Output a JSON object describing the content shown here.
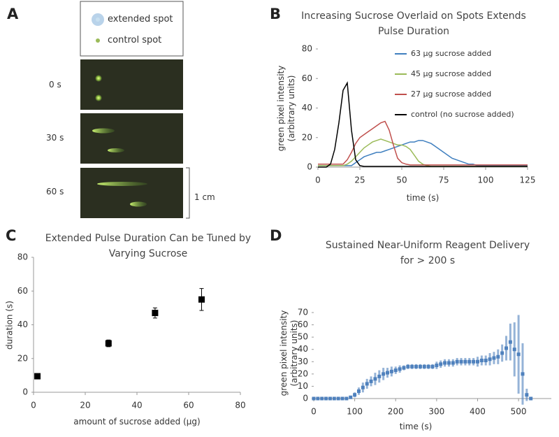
{
  "panel_a": {
    "panel": "A",
    "legend": [
      "extended spot",
      "control spot"
    ],
    "frames": [
      "0 s",
      "30 s",
      "60 s"
    ],
    "scale_bar": "1 cm"
  },
  "chart_data": [
    {
      "type": "line",
      "panel": "B",
      "title": "Increasing Sucrose Overlaid on Spots Extends Pulse Duration",
      "x_label": "time (s)",
      "y_label": "green pixel intensity (arbitrary units)",
      "x": [
        0,
        2.5,
        5,
        7.5,
        10,
        12.5,
        15,
        17.5,
        20,
        22.5,
        25,
        27.5,
        30,
        32.5,
        35,
        37.5,
        40,
        42.5,
        45,
        47.5,
        50,
        52.5,
        55,
        57.5,
        60,
        62.5,
        65,
        67.5,
        70,
        72.5,
        75,
        77.5,
        80,
        82.5,
        85,
        87.5,
        90,
        92.5,
        95,
        97.5,
        100,
        102.5,
        105,
        107.5,
        110,
        112.5,
        115,
        117.5,
        120,
        122.5,
        125
      ],
      "series": [
        {
          "name": "63 µg sucrose added",
          "color": "#3f7fbf",
          "values": [
            1,
            1,
            1,
            1,
            1,
            1,
            1,
            1,
            1,
            3,
            5,
            7,
            8,
            9,
            10,
            10,
            11,
            12,
            13,
            14,
            15,
            16,
            17,
            17,
            18,
            18,
            17,
            16,
            14,
            12,
            10,
            8,
            6,
            5,
            4,
            3,
            2,
            2,
            1,
            1,
            1,
            1,
            1,
            1,
            1,
            1,
            1,
            1,
            1,
            1,
            1
          ]
        },
        {
          "name": "45 µg sucrose added",
          "color": "#9bbb59",
          "values": [
            1,
            1,
            1,
            1,
            1,
            1,
            1,
            2,
            4,
            7,
            10,
            13,
            15,
            17,
            18,
            19,
            18,
            17,
            16,
            15,
            15,
            14,
            12,
            8,
            4,
            2,
            1,
            0.5,
            0.5,
            0.5,
            0.5,
            0.5,
            0.5,
            0.5,
            0.5,
            0.5,
            0.5,
            0.5,
            0.5,
            0.5,
            0.5,
            0.5,
            0.5,
            0.5,
            0.5,
            0.5,
            0.5,
            0.5,
            0.5,
            0.5,
            0.5
          ]
        },
        {
          "name": "27 µg sucrose added",
          "color": "#c0504d",
          "values": [
            2,
            2,
            2,
            2,
            2,
            2,
            2,
            5,
            10,
            16,
            20,
            22,
            24,
            26,
            28,
            30,
            31,
            25,
            15,
            6,
            3,
            2,
            1.5,
            1.5,
            1.5,
            1.5,
            1.5,
            1.5,
            1.5,
            1.5,
            1.5,
            1.5,
            1.5,
            1.5,
            1.5,
            1.5,
            1.5,
            1.5,
            1.5,
            1.5,
            1.5,
            1.5,
            1.5,
            1.5,
            1.5,
            1.5,
            1.5,
            1.5,
            1.5,
            1.5,
            1.5
          ]
        },
        {
          "name": "control (no sucrose added)",
          "color": "#000000",
          "values": [
            0,
            0,
            0,
            2,
            12,
            30,
            52,
            57,
            25,
            5,
            1,
            0.5,
            0.5,
            0.5,
            0.5,
            0.5,
            0.5,
            0.5,
            0.5,
            0.5,
            0.5,
            0.5,
            0.5,
            0.5,
            0.5,
            0.5,
            0.5,
            0.5,
            0.5,
            0.5,
            0.5,
            0.5,
            0.5,
            0.5,
            0.5,
            0.5,
            0.5,
            0.5,
            0.5,
            0.5,
            0.5,
            0.5,
            0.5,
            0.5,
            0.5,
            0.5,
            0.5,
            0.5,
            0.5,
            0.5,
            0.5
          ]
        }
      ],
      "xlim": [
        0,
        125
      ],
      "ylim": [
        0,
        80
      ],
      "xticks": [
        0,
        25,
        50,
        75,
        100,
        125
      ],
      "yticks": [
        0,
        20,
        40,
        60,
        80
      ]
    },
    {
      "type": "scatter",
      "panel": "C",
      "title": "Extended Pulse Duration Can be Tuned by Varying Sucrose",
      "x_label": "amount of sucrose added (µg)",
      "y_label": "duration (s)",
      "x": [
        1.5,
        29,
        47,
        65
      ],
      "values": [
        9.5,
        29,
        47,
        55
      ],
      "errors": [
        1,
        2,
        3,
        6.5
      ],
      "color": "#000000",
      "xlim": [
        0,
        80
      ],
      "ylim": [
        0,
        80
      ],
      "xticks": [
        0,
        20,
        40,
        60,
        80
      ],
      "yticks": [
        0,
        20,
        40,
        60,
        80
      ]
    },
    {
      "type": "line",
      "panel": "D",
      "title": "Sustained Near-Uniform Reagent Delivery for > 200 s",
      "x_label": "time (s)",
      "y_label": "green pixel intensity (arbitrary units)",
      "color": "#4f81bd",
      "x": [
        0,
        10,
        20,
        30,
        40,
        50,
        60,
        70,
        80,
        90,
        100,
        110,
        120,
        130,
        140,
        150,
        160,
        170,
        180,
        190,
        200,
        210,
        220,
        230,
        240,
        250,
        260,
        270,
        280,
        290,
        300,
        310,
        320,
        330,
        340,
        350,
        360,
        370,
        380,
        390,
        400,
        410,
        420,
        430,
        440,
        450,
        460,
        470,
        480,
        490,
        500,
        510,
        520,
        530
      ],
      "values": [
        0,
        0,
        0,
        0,
        0,
        0,
        0,
        0,
        0,
        1,
        3,
        6,
        9,
        12,
        14,
        16,
        18,
        20,
        21,
        22,
        23,
        24,
        25,
        26,
        26,
        26,
        26,
        26,
        26,
        26,
        27,
        28,
        29,
        29,
        29,
        30,
        30,
        30,
        30,
        30,
        30,
        31,
        31,
        32,
        33,
        34,
        37,
        41,
        46,
        40,
        36,
        20,
        3,
        0
      ],
      "errors": [
        0,
        0,
        0,
        0,
        0,
        0,
        0,
        0,
        0,
        1,
        2,
        3,
        4,
        4,
        4,
        5,
        5,
        5,
        4,
        4,
        3,
        3,
        2,
        2,
        2,
        2,
        2,
        2,
        2,
        2,
        3,
        3,
        3,
        3,
        3,
        3,
        3,
        3,
        3,
        3,
        4,
        4,
        4,
        5,
        5,
        6,
        7,
        10,
        15,
        22,
        32,
        25,
        5,
        0
      ],
      "xlim": [
        0,
        580
      ],
      "ylim": [
        0,
        70
      ],
      "xticks": [
        0,
        100,
        200,
        300,
        400,
        500
      ],
      "yticks": [
        0,
        10,
        20,
        30,
        40,
        50,
        60,
        70
      ]
    }
  ]
}
